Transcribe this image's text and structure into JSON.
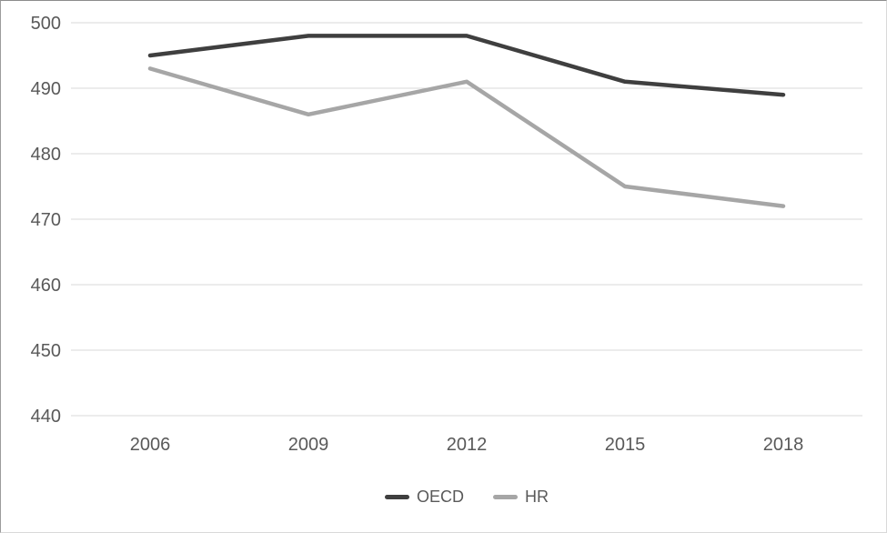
{
  "chart_data": {
    "type": "line",
    "categories": [
      "2006",
      "2009",
      "2012",
      "2015",
      "2018"
    ],
    "series": [
      {
        "name": "OECD",
        "values": [
          495,
          498,
          498,
          491,
          489
        ],
        "color": "#3f3f3f"
      },
      {
        "name": "HR",
        "values": [
          493,
          486,
          491,
          475,
          472
        ],
        "color": "#a6a6a6"
      }
    ],
    "ylim": [
      440,
      500
    ],
    "yticks": [
      440,
      450,
      460,
      470,
      480,
      490,
      500
    ],
    "grid": "horizontal-only",
    "gridline_color": "#d9d9d9",
    "tick_label_color": "#595959",
    "legend_position": "bottom-center"
  }
}
